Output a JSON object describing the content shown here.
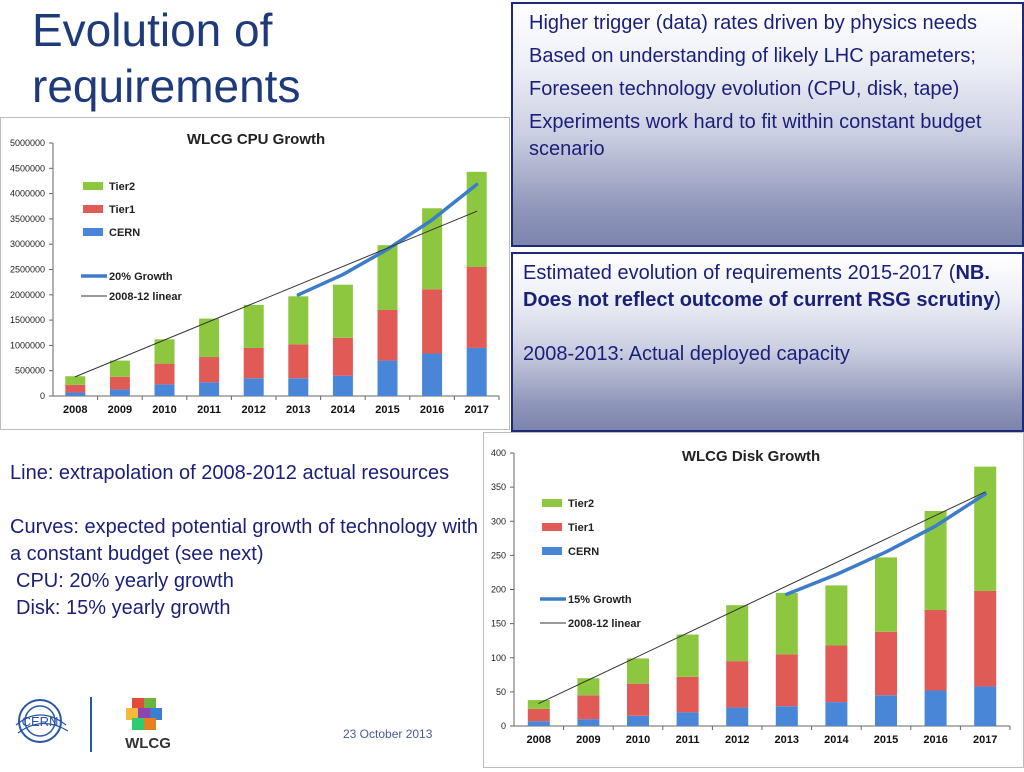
{
  "slide": {
    "title": "Evolution of requirements",
    "panel1": {
      "bullets": [
        "Higher trigger (data) rates driven by physics needs",
        "Based on understanding of likely LHC parameters;",
        "Foreseen technology evolution (CPU, disk, tape)",
        "Experiments work hard to fit within constant budget scenario"
      ]
    },
    "panel2": {
      "line1_pre": "Estimated evolution of requirements 2015-2017 (",
      "line1_bold": "NB. Does not reflect outcome of current RSG scrutiny",
      "line1_post": ")",
      "line2": "2008-2013: Actual deployed capacity"
    },
    "left_note": {
      "p1": "Line: extrapolation of 2008-2012 actual resources",
      "p2": "Curves: expected potential growth of technology with a constant budget (see next)",
      "p3": "CPU: 20% yearly growth",
      "p4": "Disk: 15% yearly growth"
    },
    "footer_date": "23 October 2013",
    "logos": {
      "cern": "CERN",
      "wlcg": "WLCG"
    },
    "colors": {
      "tier2": "#8dc63f",
      "tier1": "#e15b56",
      "cern": "#4a86d8",
      "growth": "#3d7cc9",
      "linear": "#333333",
      "title_blue": "#1f3a7a"
    }
  },
  "chart_data": [
    {
      "type": "bar",
      "stacked": true,
      "title": "WLCG CPU Growth",
      "categories": [
        "2008",
        "2009",
        "2010",
        "2011",
        "2012",
        "2013",
        "2014",
        "2015",
        "2016",
        "2017"
      ],
      "series": [
        {
          "name": "CERN",
          "values": [
            70000,
            130000,
            230000,
            270000,
            350000,
            350000,
            400000,
            700000,
            840000,
            950000
          ]
        },
        {
          "name": "Tier1",
          "values": [
            150000,
            250000,
            410000,
            500000,
            600000,
            670000,
            750000,
            1000000,
            1270000,
            1600000
          ]
        },
        {
          "name": "Tier2",
          "values": [
            170000,
            320000,
            480000,
            760000,
            850000,
            950000,
            1050000,
            1280000,
            1600000,
            1880000
          ]
        }
      ],
      "lines": [
        {
          "name": "20% Growth",
          "x": [
            "2013",
            "2014",
            "2015",
            "2016",
            "2017"
          ],
          "values": [
            2000000,
            2400000,
            2900000,
            3480000,
            4180000
          ]
        },
        {
          "name": "2008-12 linear",
          "x": [
            "2008",
            "2017"
          ],
          "values": [
            380000,
            3650000
          ]
        }
      ],
      "ylim": [
        0,
        5000000
      ],
      "yticks": [
        0,
        500000,
        1000000,
        1500000,
        2000000,
        2500000,
        3000000,
        3500000,
        4000000,
        4500000,
        5000000
      ],
      "ytick_labels": [
        "0",
        "500000",
        "1000000",
        "1500000",
        "2000000",
        "2500000",
        "3000000",
        "3500000",
        "4000000",
        "4500000",
        "5000000"
      ],
      "legend": [
        "Tier2",
        "Tier1",
        "CERN",
        "20% Growth",
        "2008-12 linear"
      ],
      "legend_position": "top-left",
      "grid": false
    },
    {
      "type": "bar",
      "stacked": true,
      "title": "WLCG Disk Growth",
      "categories": [
        "2008",
        "2009",
        "2010",
        "2011",
        "2012",
        "2013",
        "2014",
        "2015",
        "2016",
        "2017"
      ],
      "series": [
        {
          "name": "CERN",
          "values": [
            7,
            10,
            15,
            20,
            27,
            29,
            35,
            45,
            52,
            58
          ]
        },
        {
          "name": "Tier1",
          "values": [
            18,
            35,
            47,
            52,
            68,
            76,
            83,
            93,
            118,
            140
          ]
        },
        {
          "name": "Tier2",
          "values": [
            13,
            25,
            37,
            62,
            82,
            90,
            88,
            109,
            145,
            182
          ]
        }
      ],
      "lines": [
        {
          "name": "15% Growth",
          "x": [
            "2013",
            "2014",
            "2015",
            "2016",
            "2017"
          ],
          "values": [
            193,
            222,
            255,
            293,
            340
          ]
        },
        {
          "name": "2008-12 linear",
          "x": [
            "2008",
            "2017"
          ],
          "values": [
            33,
            343
          ]
        }
      ],
      "ylim": [
        0,
        400
      ],
      "yticks": [
        0,
        50,
        100,
        150,
        200,
        250,
        300,
        350,
        400
      ],
      "ytick_labels": [
        "0",
        "50",
        "100",
        "150",
        "200",
        "250",
        "300",
        "350",
        "400"
      ],
      "legend": [
        "Tier2",
        "Tier1",
        "CERN",
        "15% Growth",
        "2008-12 linear"
      ],
      "legend_position": "top-left",
      "grid": false
    }
  ]
}
